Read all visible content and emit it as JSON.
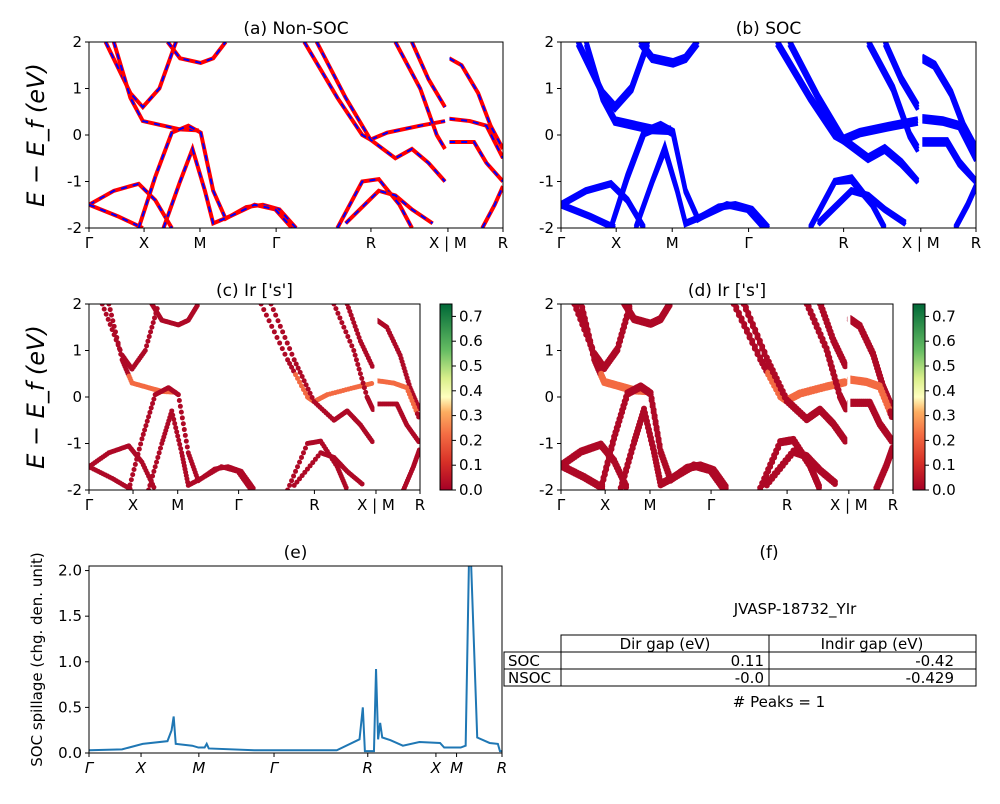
{
  "chart_data": [
    {
      "id": "a",
      "type": "line",
      "title": "(a) Non-SOC",
      "ylabel": "E − E_f (eV)",
      "ylim": [
        -2,
        2
      ],
      "yticks": [
        "-2",
        "-1",
        "0",
        "1",
        "2"
      ],
      "xticks": [
        "Γ",
        "X",
        "M",
        "Γ",
        "R",
        "X | M",
        "R"
      ],
      "style": "red-blue-dashed"
    },
    {
      "id": "b",
      "type": "line",
      "title": "(b) SOC",
      "ylim": [
        -2,
        2
      ],
      "yticks": [
        "-2",
        "-1",
        "0",
        "1",
        "2"
      ],
      "xticks": [
        "Γ",
        "X",
        "M",
        "Γ",
        "R",
        "X | M",
        "R"
      ],
      "style": "blue"
    },
    {
      "id": "c",
      "type": "scatter",
      "title": "(c)  Ir ['s']",
      "ylabel": "E − E_f (eV)",
      "ylim": [
        -2,
        2
      ],
      "yticks": [
        "-2",
        "-1",
        "0",
        "1",
        "2"
      ],
      "xticks": [
        "Γ",
        "X",
        "M",
        "Γ",
        "R",
        "X | M",
        "R"
      ],
      "colorbar": {
        "range": [
          0,
          0.75
        ],
        "colormap": "RdYlGn",
        "ticks": [
          "0.0",
          "0.1",
          "0.2",
          "0.3",
          "0.4",
          "0.5",
          "0.6",
          "0.7"
        ]
      }
    },
    {
      "id": "d",
      "type": "scatter",
      "title": "(d) Ir ['s']",
      "ylim": [
        -2,
        2
      ],
      "yticks": [
        "-2",
        "-1",
        "0",
        "1",
        "2"
      ],
      "xticks": [
        "Γ",
        "X",
        "M",
        "Γ",
        "R",
        "X | M",
        "R"
      ],
      "colorbar": {
        "range": [
          0,
          0.75
        ],
        "colormap": "RdYlGn",
        "ticks": [
          "0.0",
          "0.1",
          "0.2",
          "0.3",
          "0.4",
          "0.5",
          "0.6",
          "0.7"
        ]
      }
    },
    {
      "id": "e",
      "type": "line",
      "title": "(e)",
      "ylabel": "SOC spillage (chg. den. unit)",
      "ylim": [
        0,
        2.05
      ],
      "yticks": [
        "0.0",
        "0.5",
        "1.0",
        "1.5",
        "2.0"
      ],
      "xticks": [
        "Γ",
        "X",
        "M",
        "Γ",
        "R",
        "X",
        "M",
        "R"
      ],
      "color": "#1f77b4",
      "x": [
        0,
        0.08,
        0.13,
        0.19,
        0.2,
        0.205,
        0.21,
        0.25,
        0.265,
        0.28,
        0.285,
        0.29,
        0.4,
        0.6,
        0.655,
        0.663,
        0.668,
        0.675,
        0.69,
        0.695,
        0.7,
        0.705,
        0.71,
        0.73,
        0.76,
        0.8,
        0.85,
        0.86,
        0.9,
        0.912,
        0.92,
        0.925,
        0.94,
        0.97,
        0.99,
        0.995,
        1
      ],
      "y": [
        0.03,
        0.04,
        0.1,
        0.13,
        0.25,
        0.4,
        0.1,
        0.08,
        0.06,
        0.06,
        0.1,
        0.05,
        0.03,
        0.03,
        0.15,
        0.5,
        0.02,
        0.02,
        0.02,
        0.92,
        0.15,
        0.33,
        0.17,
        0.14,
        0.08,
        0.12,
        0.11,
        0.06,
        0.06,
        0.08,
        2.1,
        2.1,
        0.17,
        0.11,
        0.1,
        0.02,
        0.02
      ]
    }
  ],
  "bands": [
    [
      [
        0,
        -1.5
      ],
      [
        0.06,
        -1.2
      ],
      [
        0.12,
        -1.05
      ],
      [
        0.16,
        -1.4
      ],
      [
        0.2,
        -2.0
      ]
    ],
    [
      [
        0,
        -1.5
      ],
      [
        0.07,
        -1.75
      ],
      [
        0.13,
        -2.0
      ]
    ],
    [
      [
        0.04,
        2
      ],
      [
        0.1,
        0.9
      ],
      [
        0.13,
        0.6
      ],
      [
        0.17,
        1.0
      ],
      [
        0.21,
        2
      ]
    ],
    [
      [
        0.06,
        2
      ],
      [
        0.1,
        0.8
      ],
      [
        0.13,
        0.3
      ],
      [
        0.18,
        0.2
      ],
      [
        0.22,
        0.12
      ],
      [
        0.265,
        0.1
      ]
    ],
    [
      [
        0.12,
        -2
      ],
      [
        0.16,
        -0.9
      ],
      [
        0.2,
        0.05
      ],
      [
        0.24,
        0.2
      ],
      [
        0.27,
        0.05
      ],
      [
        0.3,
        -1.2
      ],
      [
        0.33,
        -1.8
      ],
      [
        0.38,
        -1.55
      ],
      [
        0.42,
        -1.5
      ],
      [
        0.46,
        -1.6
      ],
      [
        0.5,
        -2
      ]
    ],
    [
      [
        0.18,
        -2
      ],
      [
        0.22,
        -1
      ],
      [
        0.25,
        -0.3
      ],
      [
        0.28,
        -1.2
      ],
      [
        0.3,
        -1.9
      ],
      [
        0.34,
        -1.75
      ],
      [
        0.4,
        -1.5
      ],
      [
        0.45,
        -1.6
      ],
      [
        0.49,
        -2
      ]
    ],
    [
      [
        0.19,
        2
      ],
      [
        0.22,
        1.65
      ],
      [
        0.27,
        1.55
      ],
      [
        0.3,
        1.65
      ],
      [
        0.33,
        2
      ]
    ],
    [
      [
        0.52,
        2
      ],
      [
        0.6,
        0.8
      ],
      [
        0.66,
        0.0
      ],
      [
        0.68,
        -0.1
      ],
      [
        0.72,
        0.05
      ],
      [
        0.8,
        0.2
      ],
      [
        0.86,
        0.3
      ]
    ],
    [
      [
        0.55,
        2
      ],
      [
        0.62,
        0.8
      ],
      [
        0.68,
        -0.1
      ],
      [
        0.74,
        -0.5
      ],
      [
        0.78,
        -0.3
      ],
      [
        0.82,
        -0.6
      ],
      [
        0.86,
        -1.0
      ]
    ],
    [
      [
        0.6,
        -2
      ],
      [
        0.66,
        -1.0
      ],
      [
        0.7,
        -0.95
      ],
      [
        0.75,
        -1.5
      ],
      [
        0.78,
        -2
      ]
    ],
    [
      [
        0.62,
        -1.9
      ],
      [
        0.7,
        -1.2
      ],
      [
        0.74,
        -1.3
      ],
      [
        0.78,
        -1.6
      ],
      [
        0.83,
        -1.9
      ]
    ],
    [
      [
        0.74,
        2
      ],
      [
        0.8,
        1.0
      ],
      [
        0.84,
        0.0
      ],
      [
        0.86,
        -0.3
      ]
    ],
    [
      [
        0.78,
        2
      ],
      [
        0.82,
        1.2
      ],
      [
        0.86,
        0.6
      ]
    ],
    [
      [
        0.87,
        1.65
      ],
      [
        0.9,
        1.5
      ],
      [
        0.94,
        0.9
      ],
      [
        0.97,
        0.2
      ],
      [
        1,
        -0.3
      ]
    ],
    [
      [
        0.87,
        0.35
      ],
      [
        0.92,
        0.3
      ],
      [
        0.96,
        0.2
      ],
      [
        1,
        -0.5
      ]
    ],
    [
      [
        0.87,
        -0.15
      ],
      [
        0.93,
        -0.15
      ],
      [
        0.96,
        -0.6
      ],
      [
        1,
        -1.0
      ]
    ],
    [
      [
        0.95,
        -2
      ],
      [
        0.98,
        -1.5
      ],
      [
        1,
        -1.1
      ]
    ]
  ],
  "table": {
    "title": "(f)",
    "material": "JVASP-18732_YIr",
    "columns": [
      "",
      "Dir gap (eV)",
      "Indir gap (eV)"
    ],
    "rows": [
      [
        "SOC",
        "0.11",
        "-0.42"
      ],
      [
        "NSOC",
        "-0.0",
        "-0.429"
      ]
    ],
    "peaks": "# Peaks = 1"
  }
}
